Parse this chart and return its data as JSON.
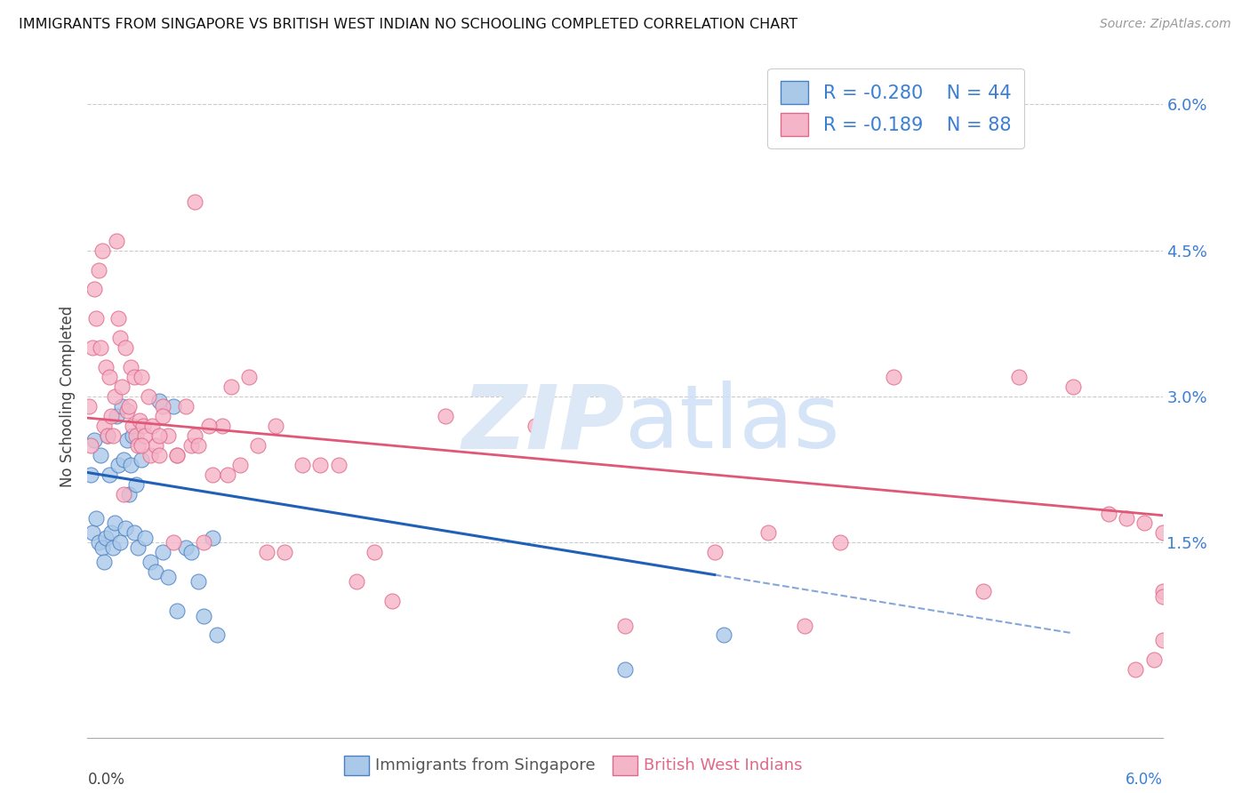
{
  "title": "IMMIGRANTS FROM SINGAPORE VS BRITISH WEST INDIAN NO SCHOOLING COMPLETED CORRELATION CHART",
  "source": "Source: ZipAtlas.com",
  "ylabel": "No Schooling Completed",
  "xmin": 0.0,
  "xmax": 6.0,
  "ymin": -0.5,
  "ymax": 6.5,
  "blue_color": "#aac8e8",
  "pink_color": "#f5b5c8",
  "blue_edge_color": "#4a80c4",
  "pink_edge_color": "#e06888",
  "blue_line_color": "#2060b8",
  "pink_line_color": "#e05878",
  "blue_R": -0.28,
  "blue_N": 44,
  "pink_R": -0.189,
  "pink_N": 88,
  "legend_label_blue": "Immigrants from Singapore",
  "legend_label_pink": "British West Indians",
  "blue_line_x0": 0.0,
  "blue_line_y0": 2.22,
  "blue_line_x1": 6.0,
  "blue_line_y1": 0.42,
  "pink_line_x0": 0.0,
  "pink_line_y0": 2.78,
  "pink_line_x1": 6.0,
  "pink_line_y1": 1.78,
  "blue_solid_end": 3.5,
  "blue_dash_end": 5.5,
  "blue_x": [
    0.02,
    0.03,
    0.04,
    0.05,
    0.06,
    0.07,
    0.08,
    0.09,
    0.1,
    0.11,
    0.12,
    0.13,
    0.14,
    0.15,
    0.16,
    0.17,
    0.18,
    0.19,
    0.2,
    0.21,
    0.22,
    0.23,
    0.24,
    0.25,
    0.26,
    0.27,
    0.28,
    0.3,
    0.32,
    0.35,
    0.38,
    0.4,
    0.42,
    0.45,
    0.48,
    0.5,
    0.55,
    0.58,
    0.62,
    0.65,
    0.7,
    0.72,
    3.0,
    3.55
  ],
  "blue_y": [
    2.2,
    1.6,
    2.55,
    1.75,
    1.5,
    2.4,
    1.45,
    1.3,
    1.55,
    2.6,
    2.2,
    1.6,
    1.45,
    1.7,
    2.8,
    2.3,
    1.5,
    2.9,
    2.35,
    1.65,
    2.55,
    2.0,
    2.3,
    2.6,
    1.6,
    2.1,
    1.45,
    2.35,
    1.55,
    1.3,
    1.2,
    2.95,
    1.4,
    1.15,
    2.9,
    0.8,
    1.45,
    1.4,
    1.1,
    0.75,
    1.55,
    0.55,
    0.2,
    0.55
  ],
  "pink_x": [
    0.01,
    0.02,
    0.03,
    0.04,
    0.05,
    0.06,
    0.07,
    0.08,
    0.09,
    0.1,
    0.11,
    0.12,
    0.13,
    0.14,
    0.15,
    0.16,
    0.17,
    0.18,
    0.19,
    0.2,
    0.21,
    0.22,
    0.23,
    0.24,
    0.25,
    0.26,
    0.27,
    0.28,
    0.29,
    0.3,
    0.31,
    0.32,
    0.34,
    0.35,
    0.36,
    0.38,
    0.4,
    0.42,
    0.45,
    0.48,
    0.5,
    0.55,
    0.58,
    0.6,
    0.65,
    0.7,
    0.75,
    0.8,
    0.9,
    1.0,
    1.1,
    1.2,
    1.3,
    1.5,
    1.7,
    2.0,
    2.5,
    3.0,
    3.5,
    3.8,
    4.0,
    4.2,
    5.0,
    5.2,
    5.5,
    5.7,
    5.8,
    5.9,
    6.0,
    6.0,
    6.0,
    6.0,
    5.95,
    5.85,
    4.5,
    0.6,
    0.42,
    0.3,
    0.4,
    0.5,
    0.62,
    0.68,
    0.78,
    0.85,
    0.95,
    1.05,
    1.4,
    1.6
  ],
  "pink_y": [
    2.9,
    2.5,
    3.5,
    4.1,
    3.8,
    4.3,
    3.5,
    4.5,
    2.7,
    3.3,
    2.6,
    3.2,
    2.8,
    2.6,
    3.0,
    4.6,
    3.8,
    3.6,
    3.1,
    2.0,
    3.5,
    2.85,
    2.9,
    3.3,
    2.7,
    3.2,
    2.6,
    2.5,
    2.75,
    3.2,
    2.7,
    2.6,
    3.0,
    2.4,
    2.7,
    2.5,
    2.4,
    2.9,
    2.6,
    1.5,
    2.4,
    2.9,
    2.5,
    5.0,
    1.5,
    2.2,
    2.7,
    3.1,
    3.2,
    1.4,
    1.4,
    2.3,
    2.3,
    1.1,
    0.9,
    2.8,
    2.7,
    0.65,
    1.4,
    1.6,
    0.65,
    1.5,
    1.0,
    3.2,
    3.1,
    1.8,
    1.75,
    1.7,
    1.6,
    1.0,
    0.95,
    0.5,
    0.3,
    0.2,
    3.2,
    2.6,
    2.8,
    2.5,
    2.6,
    2.4,
    2.5,
    2.7,
    2.2,
    2.3,
    2.5,
    2.7,
    2.3,
    1.4
  ]
}
